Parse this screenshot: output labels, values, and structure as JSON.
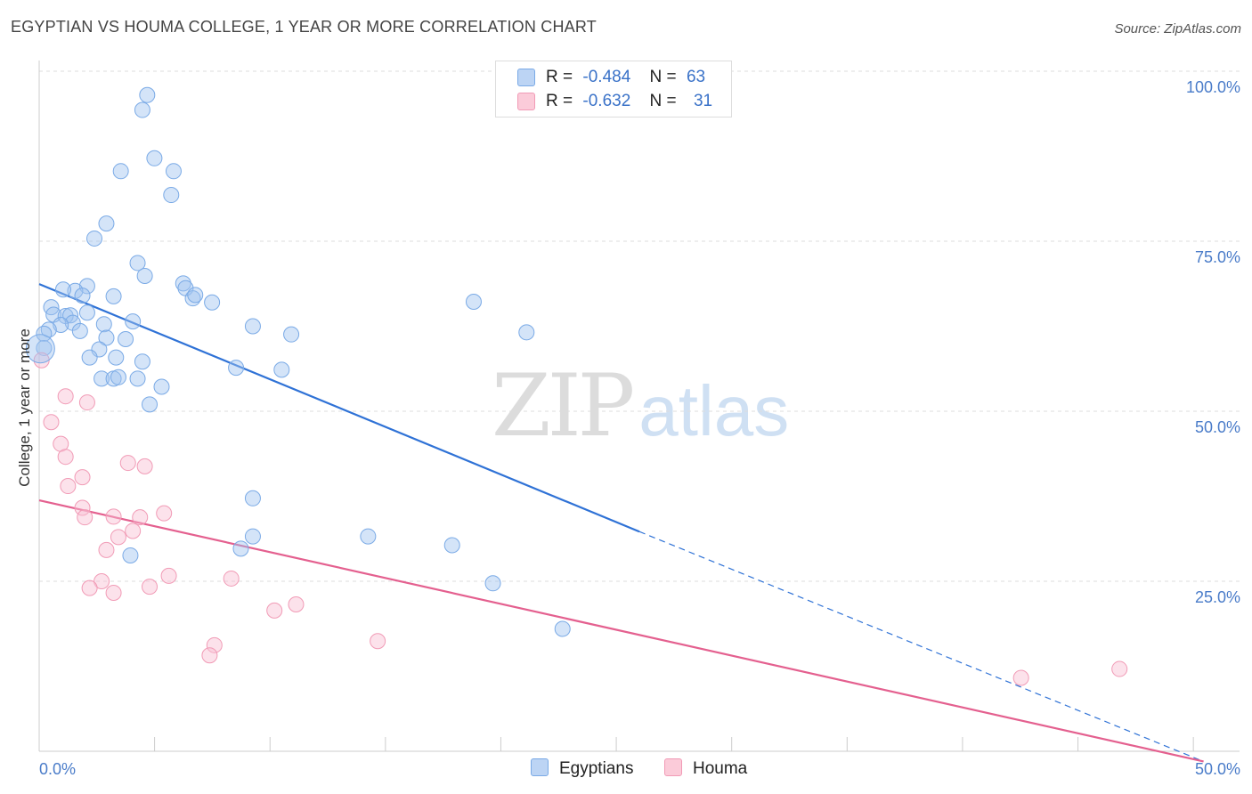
{
  "title": "EGYPTIAN VS HOUMA COLLEGE, 1 YEAR OR MORE CORRELATION CHART",
  "source": "Source: ZipAtlas.com",
  "watermark": {
    "zip": "ZIP",
    "atlas": "atlas"
  },
  "legend_top": [
    {
      "r_label": "R =",
      "r_value": "-0.484",
      "n_label": "N =",
      "n_value": "63"
    },
    {
      "r_label": "R =",
      "r_value": "-0.632",
      "n_label": "N =",
      "n_value": "31"
    }
  ],
  "legend_bottom": [
    "Egyptians",
    "Houma"
  ],
  "chart_data": {
    "type": "scatter",
    "title": "EGYPTIAN VS HOUMA COLLEGE, 1 YEAR OR MORE CORRELATION CHART",
    "xlabel": "",
    "ylabel": "College, 1 year or more",
    "xlim": [
      0,
      50
    ],
    "ylim": [
      0,
      100
    ],
    "x_tick_labels": [
      "0.0%",
      "50.0%"
    ],
    "y_ticks": [
      25,
      50,
      75,
      100
    ],
    "y_tick_labels": [
      "25.0%",
      "50.0%",
      "75.0%",
      "100.0%"
    ],
    "colors": {
      "Egyptians": "#7aaae6",
      "Houma": "#f19bb6",
      "egypt_line": "#2f72d6",
      "houma_line": "#e4608f"
    },
    "series": [
      {
        "name": "Egyptians",
        "r": -0.484,
        "n": 63,
        "trend": {
          "x0": 0,
          "y0": 68.7,
          "x1": 25,
          "y1": 32.3,
          "dash_to_x": 48.5,
          "dash_to_y": -1.5
        },
        "points": [
          [
            4.5,
            96.5
          ],
          [
            4.3,
            94.3
          ],
          [
            4.8,
            87.2
          ],
          [
            3.4,
            85.3
          ],
          [
            5.6,
            85.3
          ],
          [
            5.5,
            81.8
          ],
          [
            2.8,
            77.6
          ],
          [
            2.3,
            75.4
          ],
          [
            4.1,
            71.8
          ],
          [
            4.4,
            69.9
          ],
          [
            6.0,
            68.8
          ],
          [
            2.0,
            68.4
          ],
          [
            1.5,
            67.7
          ],
          [
            1.0,
            67.9
          ],
          [
            1.8,
            67.0
          ],
          [
            3.1,
            66.9
          ],
          [
            6.1,
            68.1
          ],
          [
            6.4,
            66.6
          ],
          [
            6.5,
            67.1
          ],
          [
            7.2,
            66.0
          ],
          [
            18.1,
            66.1
          ],
          [
            0.5,
            65.3
          ],
          [
            0.6,
            64.2
          ],
          [
            1.1,
            64.0
          ],
          [
            1.3,
            64.1
          ],
          [
            2.0,
            64.5
          ],
          [
            1.4,
            63.0
          ],
          [
            0.9,
            62.7
          ],
          [
            0.4,
            62.0
          ],
          [
            0.2,
            61.4
          ],
          [
            2.7,
            62.8
          ],
          [
            3.9,
            63.2
          ],
          [
            8.9,
            62.5
          ],
          [
            10.5,
            61.3
          ],
          [
            20.3,
            61.6
          ],
          [
            1.7,
            61.8
          ],
          [
            2.8,
            60.8
          ],
          [
            3.6,
            60.6
          ],
          [
            2.5,
            59.1
          ],
          [
            0.2,
            59.3
          ],
          [
            2.1,
            57.9
          ],
          [
            3.2,
            57.9
          ],
          [
            4.3,
            57.3
          ],
          [
            8.2,
            56.4
          ],
          [
            10.1,
            56.1
          ],
          [
            2.6,
            54.8
          ],
          [
            3.1,
            54.8
          ],
          [
            3.3,
            55.0
          ],
          [
            4.1,
            54.8
          ],
          [
            5.1,
            53.6
          ],
          [
            4.6,
            51.0
          ],
          [
            8.9,
            37.2
          ],
          [
            8.9,
            31.6
          ],
          [
            8.4,
            29.8
          ],
          [
            13.7,
            31.6
          ],
          [
            17.2,
            30.3
          ],
          [
            3.8,
            28.8
          ],
          [
            18.9,
            24.7
          ],
          [
            21.8,
            18.0
          ]
        ]
      },
      {
        "name": "Houma",
        "r": -0.632,
        "n": 31,
        "trend": {
          "x0": 0,
          "y0": 36.9,
          "x1": 48.5,
          "y1": -1.5
        },
        "points": [
          [
            0.1,
            57.5
          ],
          [
            1.1,
            52.2
          ],
          [
            2.0,
            51.3
          ],
          [
            0.5,
            48.4
          ],
          [
            0.9,
            45.2
          ],
          [
            1.1,
            43.3
          ],
          [
            3.7,
            42.4
          ],
          [
            4.4,
            41.9
          ],
          [
            1.8,
            40.3
          ],
          [
            1.2,
            39.0
          ],
          [
            1.8,
            35.8
          ],
          [
            5.2,
            35.0
          ],
          [
            1.9,
            34.4
          ],
          [
            3.1,
            34.5
          ],
          [
            4.2,
            34.4
          ],
          [
            3.9,
            32.4
          ],
          [
            3.3,
            31.5
          ],
          [
            2.8,
            29.6
          ],
          [
            5.4,
            25.8
          ],
          [
            8.0,
            25.4
          ],
          [
            2.6,
            25.0
          ],
          [
            2.1,
            24.0
          ],
          [
            3.1,
            23.3
          ],
          [
            4.6,
            24.2
          ],
          [
            10.7,
            21.6
          ],
          [
            9.8,
            20.7
          ],
          [
            7.3,
            15.6
          ],
          [
            7.1,
            14.1
          ],
          [
            14.1,
            16.2
          ],
          [
            45.0,
            12.1
          ],
          [
            40.9,
            10.8
          ]
        ]
      }
    ]
  }
}
